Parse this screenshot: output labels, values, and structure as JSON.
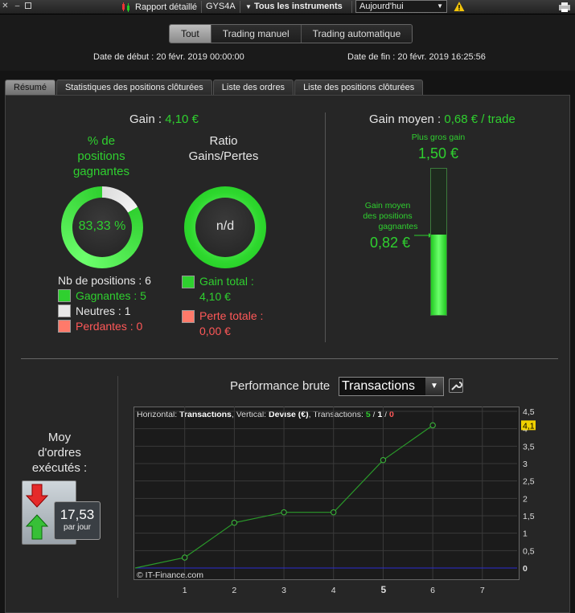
{
  "titlebar": {
    "report_label": "Rapport détaillé",
    "symbol": "GYS4A",
    "instruments_label": "Tous les instruments",
    "period_value": "Aujourd'hui"
  },
  "filter": {
    "buttons": [
      "Tout",
      "Trading manuel",
      "Trading automatique"
    ],
    "active": "Tout"
  },
  "dates": {
    "start_label": "Date de début :",
    "start_value": "20 févr. 2019 00:00:00",
    "end_label": "Date de fin :",
    "end_value": "20 févr. 2019 16:25:56"
  },
  "tabs": [
    "Résumé",
    "Statistiques des positions clôturées",
    "Liste des ordres",
    "Liste des positions clôturées"
  ],
  "summary": {
    "gain_label": "Gain :",
    "gain_value": "4,10 €",
    "win_pct_label_1": "% de",
    "win_pct_label_2": "positions",
    "win_pct_label_3": "gagnantes",
    "win_pct_value": "83,33 %",
    "win_pct_fraction": 0.8333,
    "ratio_label_1": "Ratio",
    "ratio_label_2": "Gains/Pertes",
    "ratio_value": "n/d",
    "nb_positions_label": "Nb de positions : 6",
    "winners": "Gagnantes : 5",
    "neutral": "Neutres : 1",
    "losers": "Perdantes : 0",
    "total_gain_label": "Gain total :",
    "total_gain_value": "4,10 €",
    "total_loss_label": "Perte totale :",
    "total_loss_value": "0,00 €"
  },
  "avg_gain": {
    "label": "Gain moyen :",
    "value": "0,68 € / trade",
    "biggest_label": "Plus gros gain",
    "biggest_value": "1,50 €",
    "avg_winning_label_1": "Gain moyen",
    "avg_winning_label_2": "des positions",
    "avg_winning_label_3": "gagnantes",
    "avg_winning_value": "0,82 €",
    "gauge_fraction": 0.547
  },
  "orders": {
    "label_1": "Moy",
    "label_2": "d'ordres",
    "label_3": "exécutés :",
    "rate_value": "17,53",
    "rate_unit": "par jour"
  },
  "performance": {
    "title": "Performance brute",
    "select_value": "Transactions",
    "header_horizontal": "Horizontal:",
    "header_h_value": "Transactions",
    "header_vertical": ", Vertical:",
    "header_v_value": "Devise (€)",
    "header_trans": ", Transactions:",
    "header_green": "5",
    "header_sep1": " / ",
    "header_white": "1",
    "header_sep2": " / ",
    "header_red": "0",
    "copyright": "© IT-Finance.com",
    "current_value_label": "4,1"
  },
  "colors": {
    "green": "#2fd02f",
    "red": "#ff5858",
    "line": "#2a9a2a",
    "zero_line": "#2b2bd0"
  },
  "chart_data": {
    "type": "line",
    "x": [
      0,
      1,
      2,
      3,
      4,
      5,
      6
    ],
    "series": [
      {
        "values": [
          0,
          0.3,
          1.3,
          1.6,
          1.6,
          3.1,
          4.1
        ]
      }
    ],
    "x_ticks": [
      "1",
      "2",
      "3",
      "4",
      "5",
      "6",
      "7"
    ],
    "y_ticks": [
      "4,5",
      "4",
      "3,5",
      "3",
      "2,5",
      "2",
      "1,5",
      "1",
      "0,5",
      "0"
    ],
    "xlim": [
      0,
      7.7
    ],
    "ylim": [
      0,
      4.5
    ],
    "grid": true
  }
}
